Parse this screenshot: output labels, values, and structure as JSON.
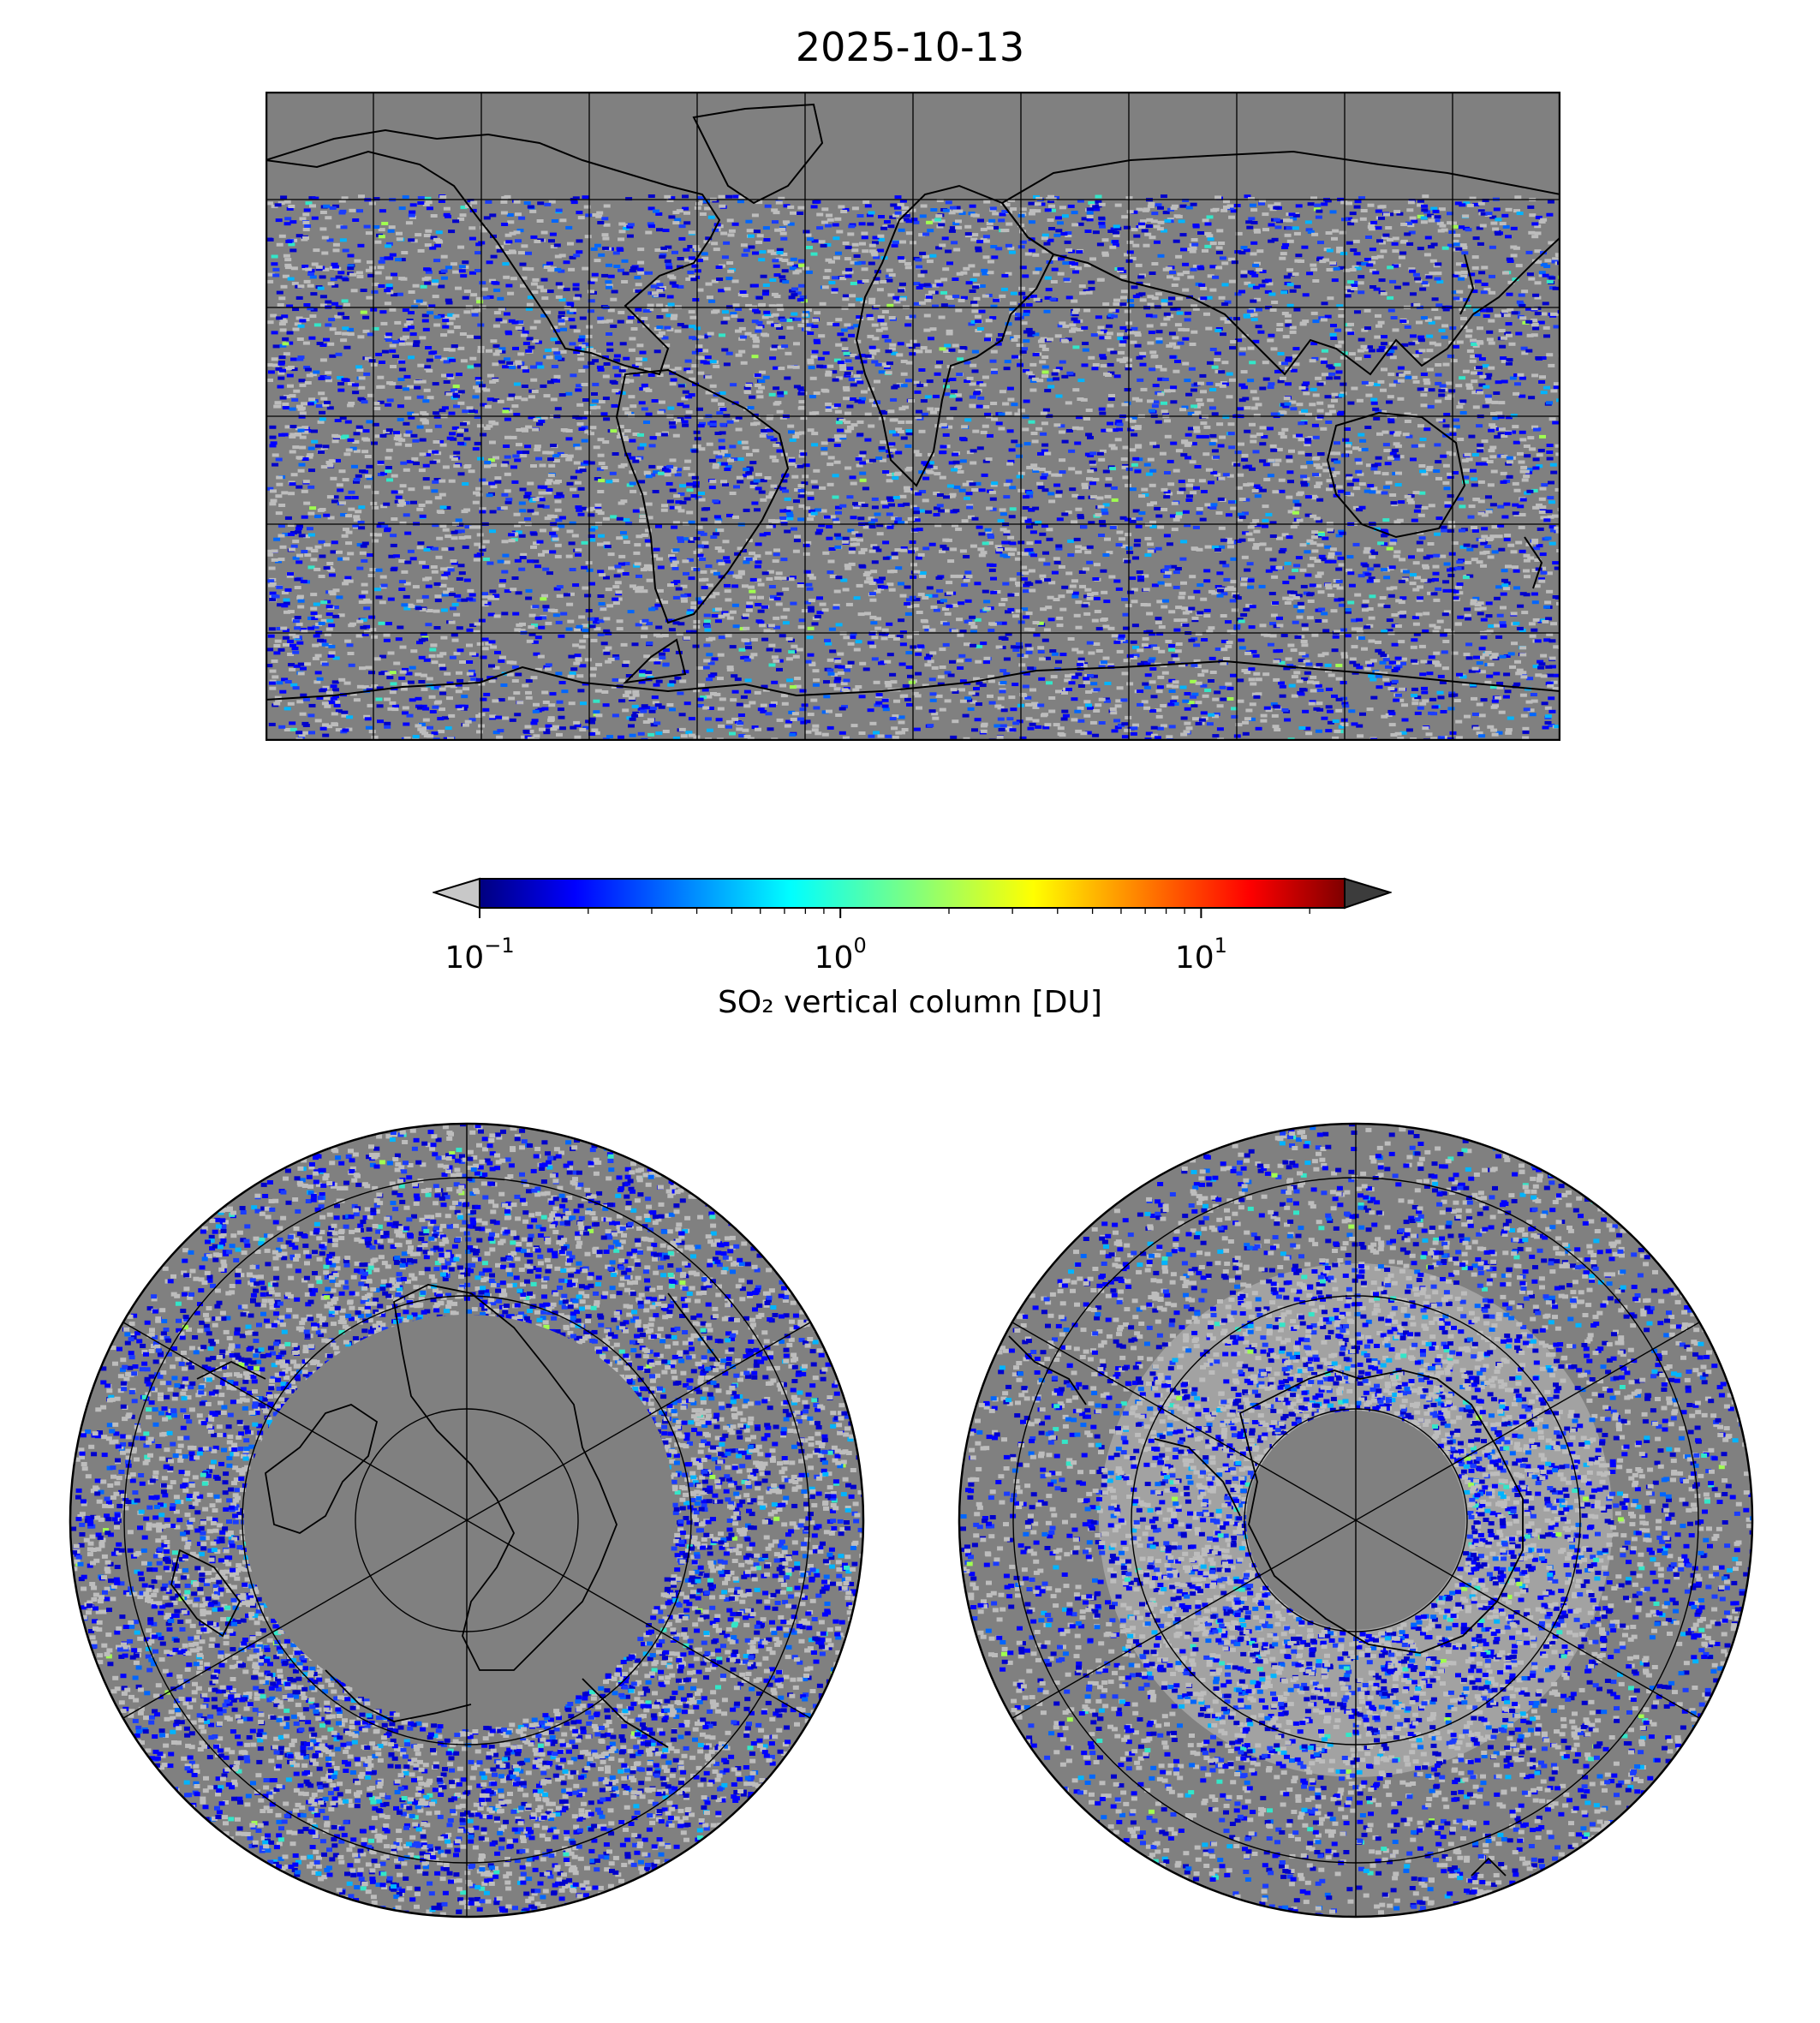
{
  "figure": {
    "title": "2025-10-13",
    "colors": {
      "background": "#ffffff",
      "ocean_grey": "#808080",
      "land_grey": "#bdbdbd"
    }
  },
  "colorbar": {
    "label": "SO₂ vertical column [DU]",
    "scale": "log",
    "range": [
      0.1,
      25
    ],
    "colormap": "jet",
    "under_color": "#c8c8c8",
    "over_color": "#3c3c3c",
    "ticks": [
      {
        "base": "10",
        "exp": "−1",
        "value": 0.1
      },
      {
        "base": "10",
        "exp": "0",
        "value": 1
      },
      {
        "base": "10",
        "exp": "1",
        "value": 10
      }
    ]
  },
  "maps": [
    {
      "id": "global",
      "projection": "equirectangular",
      "region": "global",
      "lon_range": [
        -180,
        180
      ],
      "lat_range": [
        -90,
        90
      ],
      "gridlines_lon_step": 30,
      "gridlines_lat_step": 30
    },
    {
      "id": "north",
      "projection": "orthographic",
      "region": "north-polar",
      "center": "north pole",
      "lat_circles": [
        40,
        60,
        80
      ],
      "meridian_step": 60
    },
    {
      "id": "south",
      "projection": "orthographic",
      "region": "south-polar",
      "center": "south pole",
      "lat_circles": [
        -40,
        -60,
        -80
      ],
      "meridian_step": 60
    }
  ]
}
